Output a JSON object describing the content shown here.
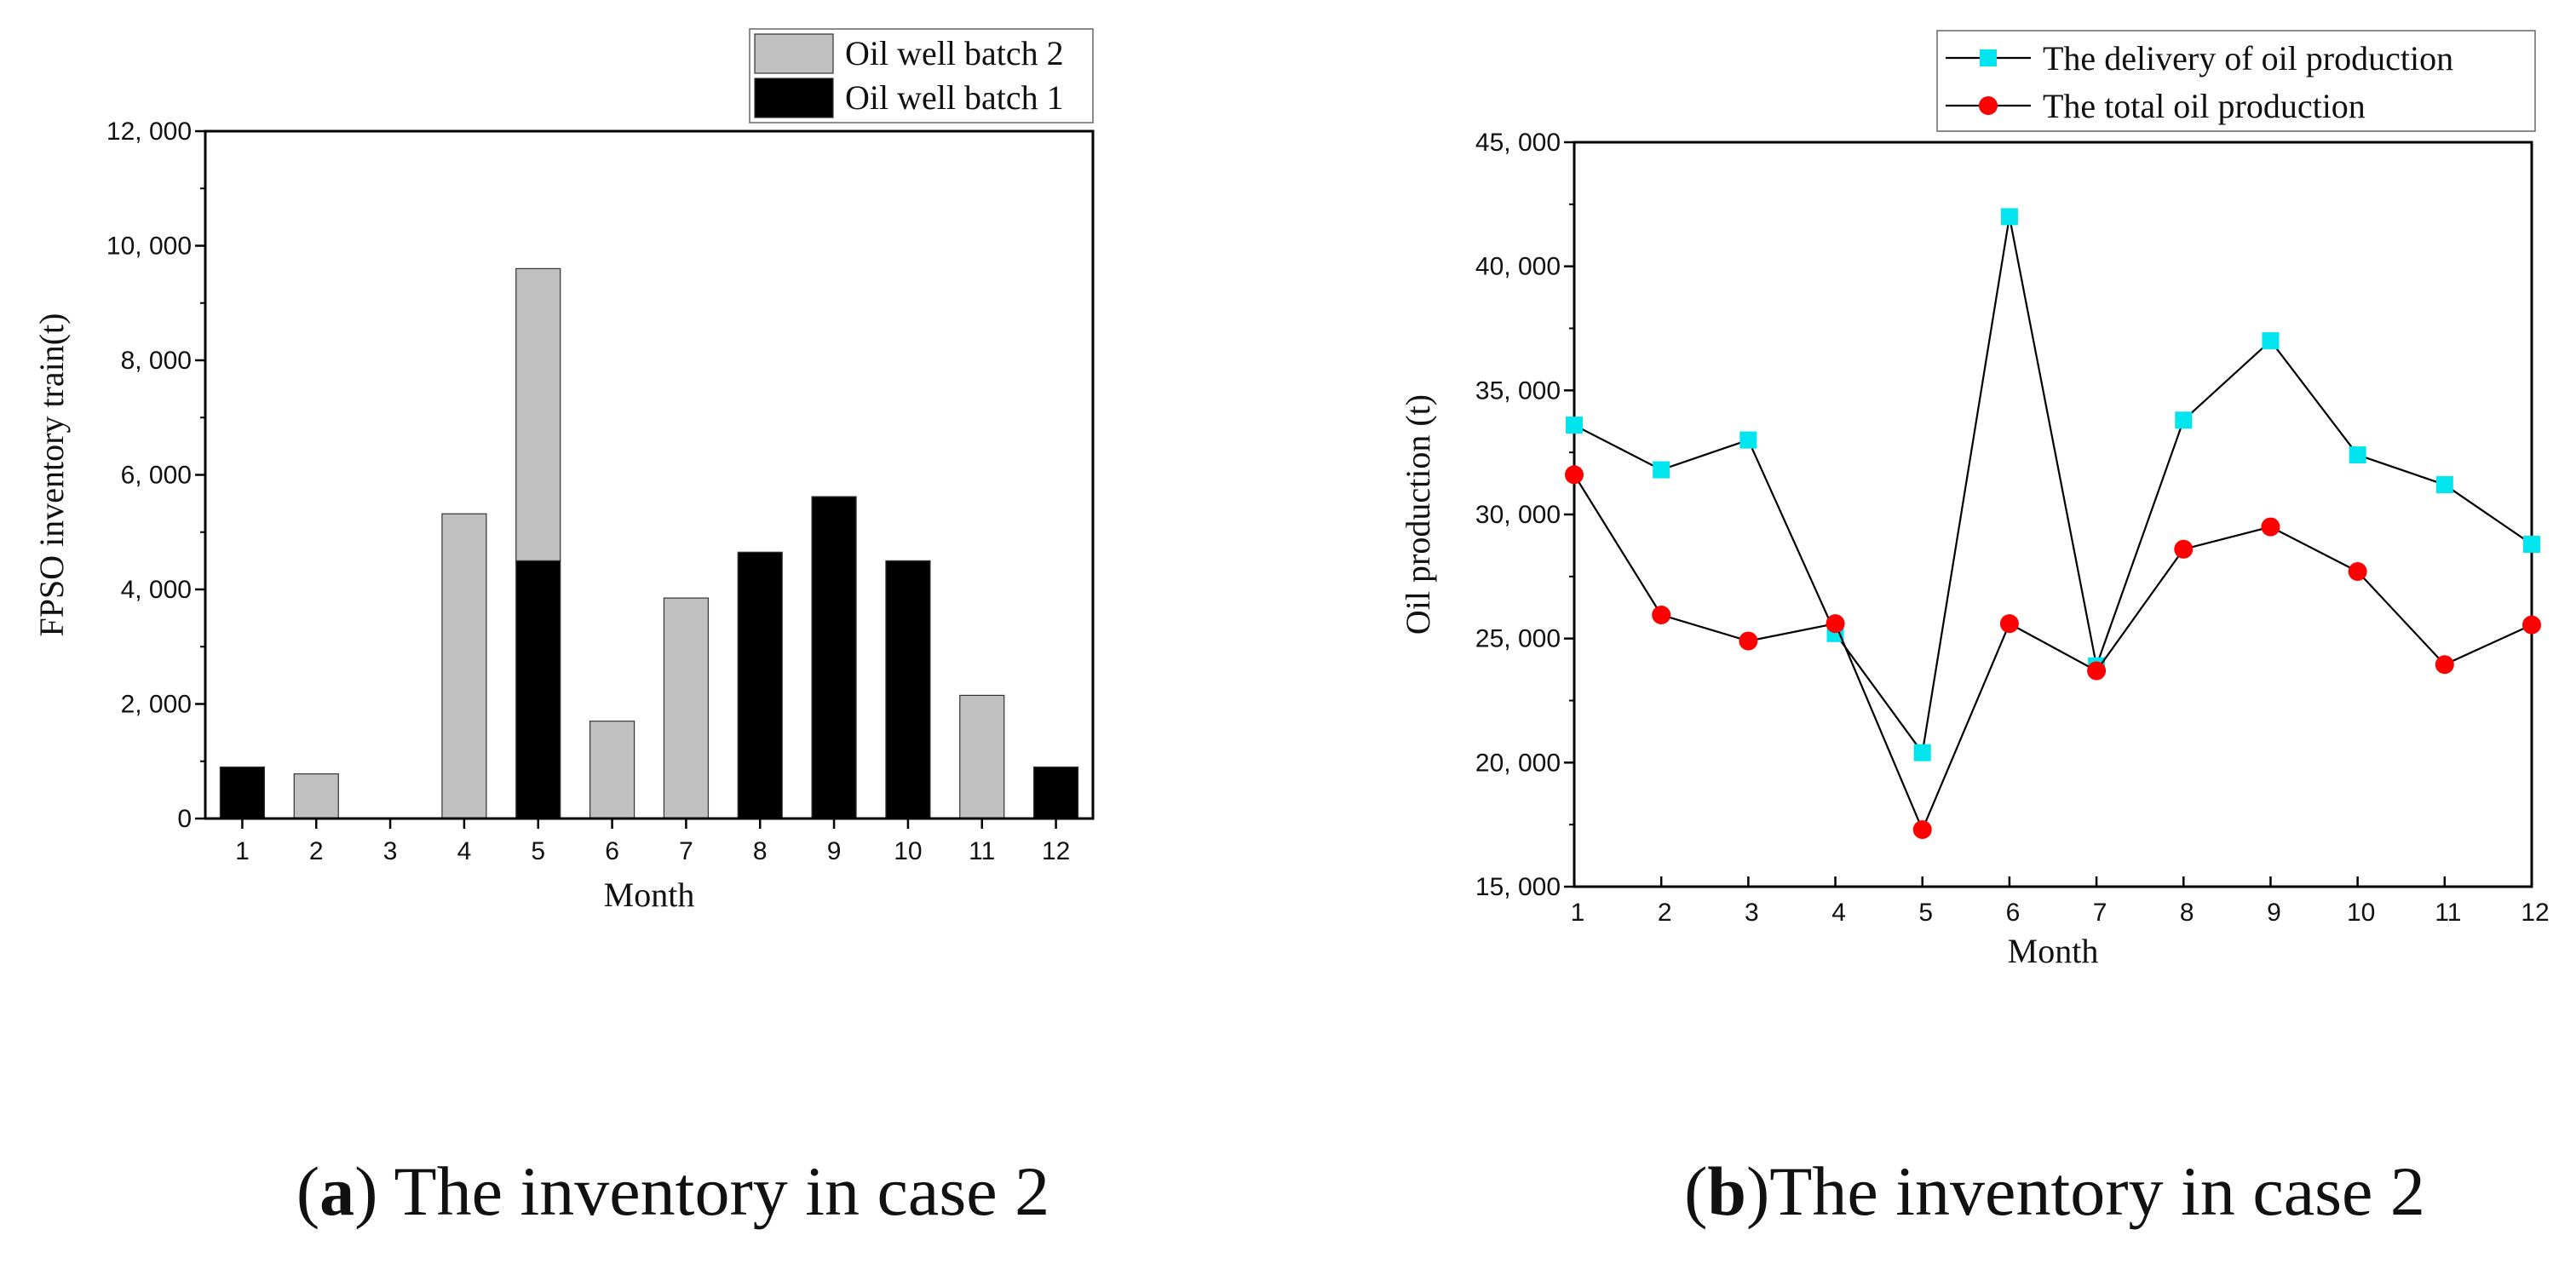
{
  "chart_data": [
    {
      "type": "bar",
      "stacked": true,
      "title": "",
      "xlabel": "Month",
      "ylabel": "FPSO inventory train(t)",
      "categories": [
        "1",
        "2",
        "3",
        "4",
        "5",
        "6",
        "7",
        "8",
        "9",
        "10",
        "11",
        "12"
      ],
      "series": [
        {
          "name": "Oil well batch 1",
          "color": "#000000",
          "values": [
            900,
            0,
            0,
            0,
            4500,
            0,
            0,
            4650,
            5620,
            4500,
            0,
            900
          ]
        },
        {
          "name": "Oil well batch 2",
          "color": "#c0c0c0",
          "values": [
            0,
            780,
            0,
            5320,
            5100,
            1700,
            3850,
            0,
            0,
            0,
            2150,
            0
          ]
        }
      ],
      "legend_order": [
        "Oil well batch 2",
        "Oil well batch 1"
      ],
      "ylim": [
        0,
        12000
      ],
      "yticks": [
        0,
        2000,
        4000,
        6000,
        8000,
        10000,
        12000
      ],
      "ytick_labels": [
        "0",
        "2, 000",
        "4, 000",
        "6, 000",
        "8, 000",
        "10, 000",
        "12, 000"
      ],
      "legend_position": "top-right",
      "caption": {
        "letter": "a",
        "text": " The inventory in case 2"
      }
    },
    {
      "type": "line",
      "title": "",
      "xlabel": "Month",
      "ylabel": "Oil production (t)",
      "x": [
        1,
        2,
        3,
        4,
        5,
        6,
        7,
        8,
        9,
        10,
        11,
        12
      ],
      "series": [
        {
          "name": "The delivery of oil production",
          "color": "#00e5ee",
          "marker": "square",
          "values": [
            33600,
            31800,
            33000,
            25200,
            20400,
            42000,
            23900,
            33800,
            37000,
            32400,
            31200,
            28800
          ]
        },
        {
          "name": "The total oil production",
          "color": "#ff0000",
          "marker": "circle",
          "values": [
            31600,
            25950,
            24900,
            25600,
            17300,
            25600,
            23700,
            28600,
            29500,
            27700,
            23950,
            25550
          ]
        }
      ],
      "ylim": [
        15000,
        45000
      ],
      "yticks": [
        15000,
        20000,
        25000,
        30000,
        35000,
        40000,
        45000
      ],
      "ytick_labels": [
        "15, 000",
        "20, 000",
        "25, 000",
        "30, 000",
        "35, 000",
        "40, 000",
        "45, 000"
      ],
      "legend_position": "top-right",
      "caption": {
        "letter": "b",
        "text": "The inventory in case 2"
      }
    }
  ]
}
